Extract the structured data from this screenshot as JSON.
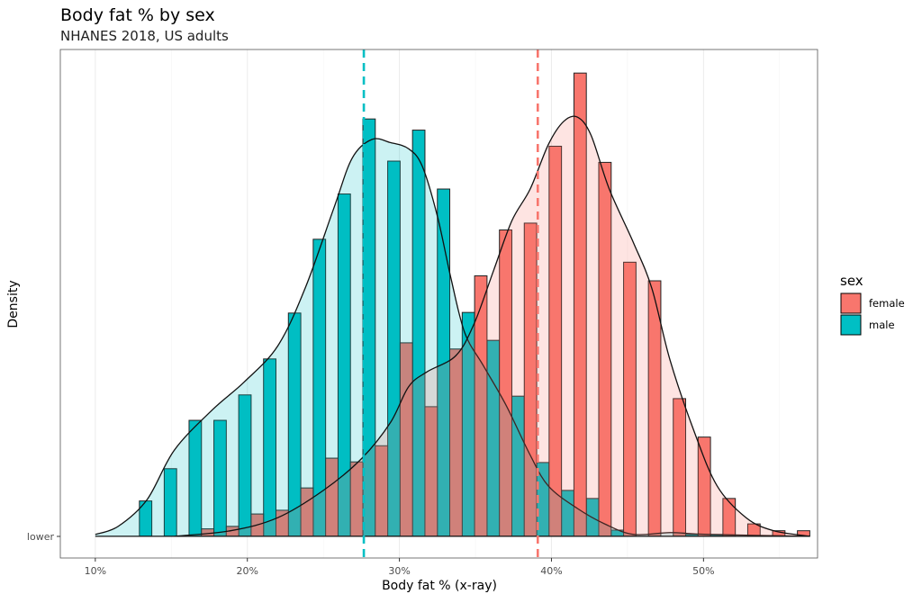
{
  "chart_data": {
    "type": "bar",
    "title": "Body fat % by sex",
    "subtitle": "NHANES 2018, US adults",
    "xlabel": "Body fat % (x-ray)",
    "ylabel": "Density",
    "y_tick_labels": [
      "lower"
    ],
    "x_ticks": [
      10,
      20,
      30,
      40,
      50
    ],
    "x_tick_labels": [
      "10%",
      "20%",
      "30%",
      "40%",
      "50%"
    ],
    "xlim": [
      7.7,
      57.5
    ],
    "ylim": [
      -0.35,
      7.85
    ],
    "grid": "vertical major and minor lines",
    "legend": {
      "title": "sex",
      "placement": "right",
      "entries": [
        "female",
        "male"
      ]
    },
    "colors": {
      "female": "#F8766D",
      "male": "#00BFC4"
    },
    "bin_start": 12.9,
    "bin_width": 1.633,
    "series": [
      {
        "name": "female",
        "histogram_density": [
          0,
          0,
          0.12,
          0.16,
          0.36,
          0.42,
          0.78,
          1.26,
          1.2,
          1.46,
          3.12,
          2.09,
          3.02,
          4.2,
          4.94,
          5.05,
          6.29,
          7.47,
          6.03,
          4.42,
          4.12,
          2.22,
          1.6,
          0.61,
          0.2,
          0.09,
          0.09
        ],
        "kde": {
          "x": [
            15.2,
            18.9,
            22,
            25,
            27.5,
            29.4,
            30.6,
            31.8,
            33.7,
            34.9,
            36.2,
            37.4,
            38.6,
            39.8,
            40.8,
            41.7,
            42.6,
            43.8,
            45.4,
            46.6,
            47.8,
            49.4,
            50.9,
            52.8,
            54.6,
            57
          ],
          "y": [
            0,
            0.09,
            0.3,
            0.74,
            1.25,
            1.83,
            2.41,
            2.65,
            2.91,
            3.42,
            4.29,
            5.09,
            5.6,
            6.32,
            6.69,
            6.76,
            6.47,
            5.6,
            4.73,
            4.0,
            2.84,
            1.68,
            0.81,
            0.3,
            0.09,
            0
          ]
        },
        "mean": 39.1
      },
      {
        "name": "male",
        "histogram_density": [
          0.57,
          1.09,
          1.87,
          1.87,
          2.28,
          2.86,
          3.6,
          4.79,
          5.52,
          6.73,
          6.05,
          6.55,
          5.6,
          3.61,
          3.16,
          2.26,
          1.19,
          0.74,
          0.61,
          0.1,
          0,
          0,
          0.03,
          0.03,
          0,
          0,
          0
        ],
        "kde": {
          "x": [
            10,
            11.5,
            13.4,
            15.2,
            17.7,
            19.8,
            22,
            23.8,
            25.7,
            26.9,
            28.2,
            29.4,
            30.6,
            31.5,
            32.5,
            33.4,
            34.3,
            35.5,
            37,
            38.6,
            39.8,
            41.7,
            43.5,
            45.4,
            47.8,
            50.3,
            57
          ],
          "y": [
            0.03,
            0.16,
            0.59,
            1.39,
            2.04,
            2.49,
            3.07,
            4.0,
            5.3,
            6.1,
            6.4,
            6.35,
            6.25,
            5.97,
            5.16,
            4.15,
            3.28,
            2.76,
            2.12,
            1.31,
            0.81,
            0.45,
            0.2,
            0.03,
            0.06,
            0.03,
            0
          ]
        },
        "mean": 27.66
      }
    ]
  }
}
